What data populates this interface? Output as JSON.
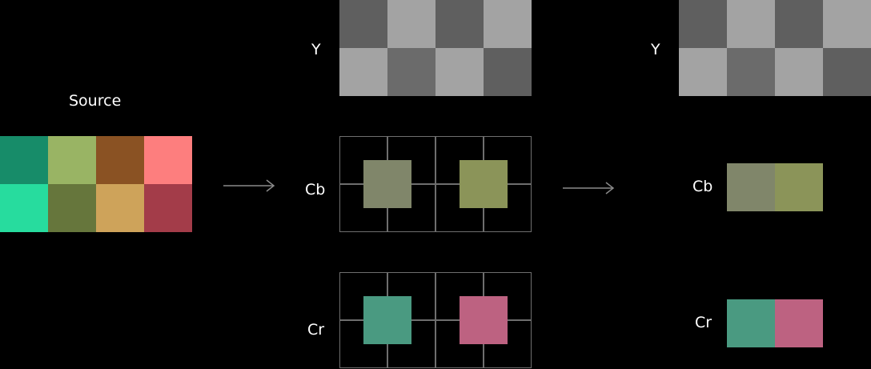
{
  "source": {
    "label": "Source",
    "pixels": [
      [
        "#178c69",
        "#99b464",
        "#8a5223",
        "#fd7e7e"
      ],
      [
        "#27dc9e",
        "#66763c",
        "#cea35a",
        "#a33c49"
      ]
    ]
  },
  "full_res": {
    "y": {
      "label": "Y",
      "pixels": [
        [
          "#5f5f5f",
          "#a3a3a3",
          "#5f5f5f",
          "#a3a3a3"
        ],
        [
          "#a3a3a3",
          "#6b6b6b",
          "#a3a3a3",
          "#5f5f5f"
        ]
      ]
    },
    "cb": {
      "label": "Cb",
      "samples": [
        "#80866a",
        "#8b9459"
      ]
    },
    "cr": {
      "label": "Cr",
      "samples": [
        "#4a9a81",
        "#bd6281"
      ]
    }
  },
  "subsampled": {
    "y": {
      "label": "Y",
      "pixels": [
        [
          "#5f5f5f",
          "#a3a3a3",
          "#5f5f5f",
          "#a3a3a3"
        ],
        [
          "#a3a3a3",
          "#6b6b6b",
          "#a3a3a3",
          "#5f5f5f"
        ]
      ]
    },
    "cb": {
      "label": "Cb",
      "samples": [
        "#80866a",
        "#8b9459"
      ]
    },
    "cr": {
      "label": "Cr",
      "samples": [
        "#4a9a81",
        "#bd6281"
      ]
    }
  },
  "colors": {
    "background": "#000000",
    "grid_line": "#6e6e6e",
    "arrow": "#8a8a8a",
    "text": "#ffffff"
  }
}
